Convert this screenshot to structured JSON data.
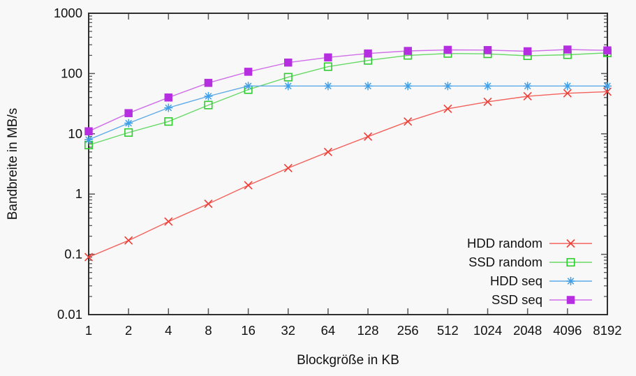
{
  "page": {
    "background": "#f8f8f8"
  },
  "chart_data": {
    "type": "line",
    "x_scale": "log2",
    "y_scale": "log10",
    "title": "",
    "xlabel": "Blockgröße in KB",
    "ylabel": "Bandbreite in MB/s",
    "xlim": [
      1,
      8192
    ],
    "ylim": [
      0.01,
      1000
    ],
    "x_tick_labels": [
      "1",
      "2",
      "4",
      "8",
      "16",
      "32",
      "64",
      "128",
      "256",
      "512",
      "1024",
      "2048",
      "4096",
      "8192"
    ],
    "y_tick_labels": [
      "1000",
      "100",
      "10",
      "1",
      "0.1",
      "0.01"
    ],
    "grid": false,
    "legend_position": "inside-bottom-right",
    "categories": [
      1,
      2,
      4,
      8,
      16,
      32,
      64,
      128,
      256,
      512,
      1024,
      2048,
      4096,
      8192
    ],
    "series": [
      {
        "name": "HDD random",
        "marker": "cross",
        "color": "#ee3d36",
        "line_color": "#f4625c",
        "values": [
          0.09,
          0.17,
          0.35,
          0.69,
          1.4,
          2.7,
          5.0,
          9.0,
          16,
          26,
          34,
          42,
          47,
          50
        ]
      },
      {
        "name": "SSD random",
        "marker": "open-square",
        "color": "#2ecc2e",
        "line_color": "#66d966",
        "values": [
          6.5,
          10.5,
          16,
          30,
          54,
          87,
          130,
          165,
          200,
          215,
          212,
          197,
          205,
          220
        ]
      },
      {
        "name": "HDD seq",
        "marker": "asterisk",
        "color": "#3f9fe8",
        "line_color": "#5caae8",
        "values": [
          8,
          15,
          27,
          42,
          62,
          62,
          62,
          62,
          62,
          62,
          62,
          62,
          62,
          62
        ]
      },
      {
        "name": "SSD seq",
        "marker": "filled-square",
        "color": "#b52fe0",
        "line_color": "#cf6ee8",
        "values": [
          11,
          22,
          40,
          70,
          107,
          152,
          185,
          215,
          237,
          247,
          245,
          234,
          250,
          242
        ]
      }
    ],
    "axis_color": "#2f2f2f",
    "tick_color": "#555555",
    "text_color": "#111111"
  }
}
